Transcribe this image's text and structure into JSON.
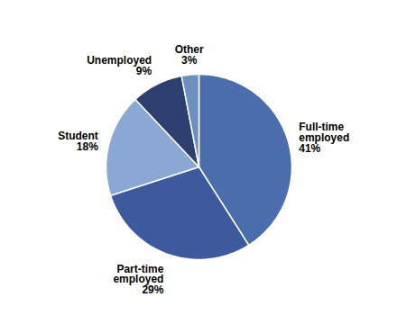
{
  "chart_data": {
    "type": "pie",
    "labels": [
      "Full-time\nemployed\n41%",
      "Part-time\nemployed\n29%",
      "Student\n18%",
      "Unemployed\n9%",
      "Other\n3%"
    ],
    "values": [
      41,
      29,
      18,
      9,
      3
    ],
    "colors": [
      "#4C6DAD",
      "#3D5A9E",
      "#8BA7D4",
      "#2C3F6E",
      "#6E8FBF"
    ]
  }
}
